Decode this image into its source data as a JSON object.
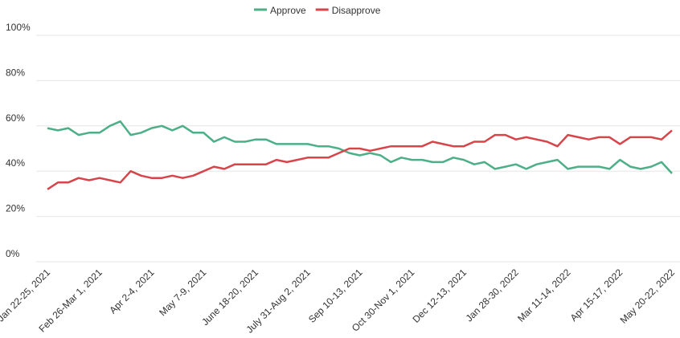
{
  "chart_data": {
    "type": "line",
    "categories": [
      "Jan 22-25, 2021",
      null,
      null,
      null,
      null,
      "Feb 26-Mar 1, 2021",
      null,
      null,
      null,
      null,
      "Apr 2-4, 2021",
      null,
      null,
      null,
      null,
      "May 7-9, 2021",
      null,
      null,
      null,
      null,
      "June 18-20, 2021",
      null,
      null,
      null,
      null,
      "July 31-Aug 2, 2021",
      null,
      null,
      null,
      null,
      "Sep 10-13, 2021",
      null,
      null,
      null,
      null,
      "Oct 30-Nov 1, 2021",
      null,
      null,
      null,
      null,
      "Dec 12-13, 2021",
      null,
      null,
      null,
      null,
      "Jan 28-30, 2022",
      null,
      null,
      null,
      null,
      "Mar 11-14, 2022",
      null,
      null,
      null,
      null,
      "Apr 15-17, 2022",
      null,
      null,
      null,
      null,
      "May 20-22, 2022"
    ],
    "series": [
      {
        "name": "Approve",
        "color": "#4daf87",
        "values": [
          59,
          58,
          59,
          56,
          57,
          57,
          60,
          62,
          56,
          57,
          59,
          60,
          58,
          60,
          57,
          57,
          53,
          55,
          53,
          53,
          54,
          54,
          52,
          52,
          52,
          52,
          51,
          51,
          50,
          48,
          47,
          48,
          47,
          44,
          46,
          45,
          45,
          44,
          44,
          46,
          45,
          43,
          44,
          41,
          42,
          43,
          41,
          43,
          44,
          45,
          41,
          42,
          42,
          42,
          41,
          45,
          42,
          41,
          42,
          44,
          39
        ]
      },
      {
        "name": "Disapprove",
        "color": "#d6454a",
        "values": [
          32,
          35,
          35,
          37,
          36,
          37,
          36,
          35,
          40,
          38,
          37,
          37,
          38,
          37,
          38,
          40,
          42,
          41,
          43,
          43,
          43,
          43,
          45,
          44,
          45,
          46,
          46,
          46,
          48,
          50,
          50,
          49,
          50,
          51,
          51,
          51,
          51,
          53,
          52,
          51,
          51,
          53,
          53,
          56,
          56,
          54,
          55,
          54,
          53,
          51,
          56,
          55,
          54,
          55,
          55,
          52,
          55,
          55,
          55,
          54,
          58
        ]
      }
    ],
    "ylim": [
      0,
      100
    ],
    "yticks": [
      {
        "value": 0,
        "label": "0%"
      },
      {
        "value": 20,
        "label": "20%"
      },
      {
        "value": 40,
        "label": "40%"
      },
      {
        "value": 60,
        "label": "60%"
      },
      {
        "value": 80,
        "label": "80%"
      },
      {
        "value": 100,
        "label": "100%"
      }
    ],
    "grid": true,
    "legend": "top"
  }
}
